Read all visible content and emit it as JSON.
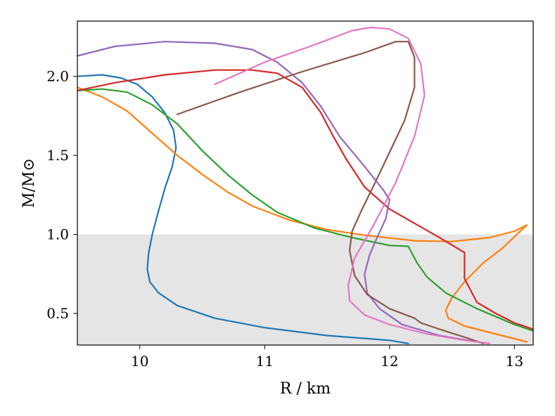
{
  "chart_data": {
    "type": "line",
    "xlabel": "R / km",
    "ylabel": "M/M⊙",
    "xlim": [
      9.5,
      13.15
    ],
    "ylim": [
      0.3,
      2.35
    ],
    "x_ticks": [
      10,
      11,
      12,
      13
    ],
    "y_ticks": [
      0.5,
      1.0,
      1.5,
      2.0
    ],
    "x_tick_labels": [
      "10",
      "11",
      "12",
      "13"
    ],
    "y_tick_labels": [
      "0.5",
      "1.0",
      "1.5",
      "2.0"
    ],
    "shaded_region": {
      "y_from": 0.3,
      "y_to": 1.0,
      "color": "#e5e5e5"
    },
    "grid": false,
    "series": [
      {
        "color": "#1f77b4",
        "points": [
          [
            9.5,
            2.0
          ],
          [
            9.7,
            2.01
          ],
          [
            9.85,
            1.99
          ],
          [
            9.98,
            1.95
          ],
          [
            10.1,
            1.87
          ],
          [
            10.2,
            1.77
          ],
          [
            10.27,
            1.66
          ],
          [
            10.29,
            1.55
          ],
          [
            10.26,
            1.43
          ],
          [
            10.2,
            1.29
          ],
          [
            10.15,
            1.15
          ],
          [
            10.1,
            1.0
          ],
          [
            10.07,
            0.88
          ],
          [
            10.06,
            0.78
          ],
          [
            10.08,
            0.7
          ],
          [
            10.15,
            0.63
          ],
          [
            10.3,
            0.55
          ],
          [
            10.6,
            0.47
          ],
          [
            11.0,
            0.41
          ],
          [
            11.5,
            0.36
          ],
          [
            12.0,
            0.33
          ],
          [
            12.15,
            0.31
          ]
        ]
      },
      {
        "color": "#ff7f0e",
        "points": [
          [
            9.5,
            1.93
          ],
          [
            9.7,
            1.87
          ],
          [
            9.9,
            1.78
          ],
          [
            10.1,
            1.64
          ],
          [
            10.3,
            1.5
          ],
          [
            10.5,
            1.38
          ],
          [
            10.7,
            1.27
          ],
          [
            10.9,
            1.18
          ],
          [
            11.2,
            1.09
          ],
          [
            11.5,
            1.03
          ],
          [
            11.8,
            0.995
          ],
          [
            12.2,
            0.96
          ],
          [
            12.5,
            0.955
          ],
          [
            12.8,
            0.98
          ],
          [
            13.0,
            1.02
          ],
          [
            13.1,
            1.06
          ],
          [
            12.9,
            0.91
          ],
          [
            12.75,
            0.82
          ],
          [
            12.6,
            0.7
          ],
          [
            12.5,
            0.6
          ],
          [
            12.45,
            0.52
          ],
          [
            12.47,
            0.47
          ],
          [
            12.6,
            0.42
          ],
          [
            12.8,
            0.38
          ],
          [
            13.0,
            0.34
          ],
          [
            13.1,
            0.32
          ]
        ]
      },
      {
        "color": "#2ca02c",
        "points": [
          [
            9.5,
            1.91
          ],
          [
            9.7,
            1.92
          ],
          [
            9.9,
            1.9
          ],
          [
            10.1,
            1.82
          ],
          [
            10.3,
            1.7
          ],
          [
            10.5,
            1.53
          ],
          [
            10.7,
            1.38
          ],
          [
            10.9,
            1.25
          ],
          [
            11.1,
            1.14
          ],
          [
            11.4,
            1.04
          ],
          [
            11.7,
            0.98
          ],
          [
            12.0,
            0.93
          ],
          [
            12.15,
            0.925
          ],
          [
            12.22,
            0.82
          ],
          [
            12.3,
            0.73
          ],
          [
            12.45,
            0.63
          ],
          [
            12.7,
            0.53
          ],
          [
            13.0,
            0.43
          ],
          [
            13.15,
            0.39
          ]
        ]
      },
      {
        "color": "#d62728",
        "points": [
          [
            9.5,
            1.91
          ],
          [
            9.8,
            1.96
          ],
          [
            10.2,
            2.01
          ],
          [
            10.6,
            2.04
          ],
          [
            10.9,
            2.04
          ],
          [
            11.1,
            2.02
          ],
          [
            11.3,
            1.93
          ],
          [
            11.45,
            1.77
          ],
          [
            11.55,
            1.62
          ],
          [
            11.65,
            1.48
          ],
          [
            11.8,
            1.3
          ],
          [
            12.0,
            1.16
          ],
          [
            12.2,
            1.07
          ],
          [
            12.4,
            0.98
          ],
          [
            12.6,
            0.885
          ],
          [
            12.6,
            0.72
          ],
          [
            12.7,
            0.57
          ],
          [
            12.85,
            0.5
          ],
          [
            13.0,
            0.44
          ],
          [
            13.15,
            0.4
          ]
        ]
      },
      {
        "color": "#9467bd",
        "points": [
          [
            9.5,
            2.13
          ],
          [
            9.8,
            2.19
          ],
          [
            10.2,
            2.22
          ],
          [
            10.6,
            2.21
          ],
          [
            10.9,
            2.17
          ],
          [
            11.1,
            2.09
          ],
          [
            11.3,
            1.96
          ],
          [
            11.45,
            1.81
          ],
          [
            11.6,
            1.62
          ],
          [
            11.8,
            1.43
          ],
          [
            11.95,
            1.28
          ],
          [
            12.0,
            1.22
          ],
          [
            11.97,
            1.1
          ],
          [
            11.9,
            0.98
          ],
          [
            11.84,
            0.87
          ],
          [
            11.8,
            0.75
          ],
          [
            11.82,
            0.63
          ],
          [
            11.92,
            0.53
          ],
          [
            12.1,
            0.43
          ],
          [
            12.4,
            0.36
          ],
          [
            12.7,
            0.32
          ],
          [
            12.8,
            0.31
          ]
        ]
      },
      {
        "color": "#8c564b",
        "points": [
          [
            10.3,
            1.76
          ],
          [
            10.8,
            1.9
          ],
          [
            11.3,
            2.03
          ],
          [
            11.8,
            2.15
          ],
          [
            12.05,
            2.22
          ],
          [
            12.15,
            2.22
          ],
          [
            12.2,
            2.12
          ],
          [
            12.2,
            1.93
          ],
          [
            12.12,
            1.72
          ],
          [
            12.0,
            1.52
          ],
          [
            11.88,
            1.32
          ],
          [
            11.78,
            1.16
          ],
          [
            11.7,
            1.02
          ],
          [
            11.68,
            0.9
          ],
          [
            11.72,
            0.74
          ],
          [
            11.82,
            0.62
          ],
          [
            12.0,
            0.53
          ],
          [
            12.2,
            0.47
          ],
          [
            12.25,
            0.44
          ],
          [
            12.4,
            0.4
          ],
          [
            12.6,
            0.35
          ],
          [
            12.75,
            0.31
          ]
        ]
      },
      {
        "color": "#e377c2",
        "points": [
          [
            10.6,
            1.95
          ],
          [
            11.0,
            2.09
          ],
          [
            11.4,
            2.2
          ],
          [
            11.7,
            2.29
          ],
          [
            11.85,
            2.31
          ],
          [
            12.0,
            2.3
          ],
          [
            12.15,
            2.24
          ],
          [
            12.25,
            2.08
          ],
          [
            12.28,
            1.88
          ],
          [
            12.2,
            1.62
          ],
          [
            12.05,
            1.33
          ],
          [
            11.88,
            1.07
          ],
          [
            11.72,
            0.85
          ],
          [
            11.67,
            0.68
          ],
          [
            11.68,
            0.58
          ],
          [
            11.8,
            0.49
          ],
          [
            12.0,
            0.43
          ],
          [
            12.3,
            0.37
          ],
          [
            12.6,
            0.33
          ],
          [
            12.8,
            0.31
          ]
        ]
      }
    ]
  }
}
